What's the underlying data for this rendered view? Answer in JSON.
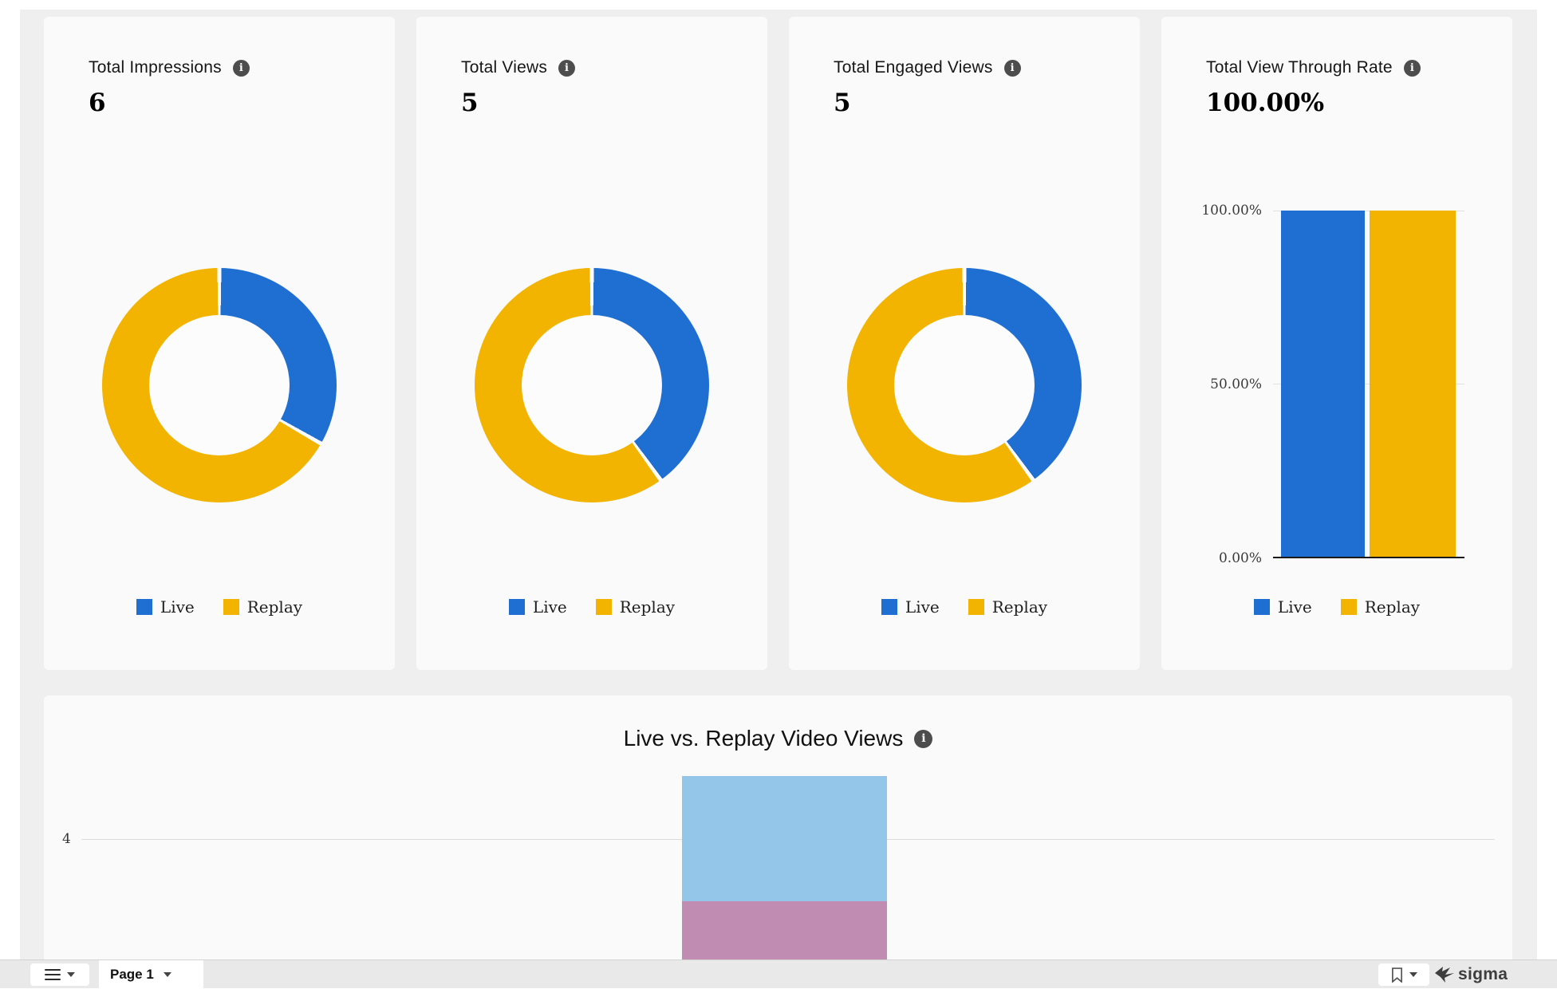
{
  "colors": {
    "live": "#1f6fd2",
    "replay": "#f2b400",
    "stack_top": "#93c6e8",
    "stack_bottom": "#c18cb2",
    "background": "#efeff0",
    "card": "#fafafa"
  },
  "legend": {
    "live": "Live",
    "replay": "Replay"
  },
  "kpi_cards": [
    {
      "title": "Total Impressions",
      "value": "6",
      "donut": {
        "live_pct": 33.3,
        "replay_pct": 66.7
      }
    },
    {
      "title": "Total Views",
      "value": "5",
      "donut": {
        "live_pct": 40,
        "replay_pct": 60
      }
    },
    {
      "title": "Total Engaged Views",
      "value": "5",
      "donut": {
        "live_pct": 40,
        "replay_pct": 60
      }
    },
    {
      "title": "Total View Through Rate",
      "value": "100.00%",
      "bar": {
        "values": [
          100,
          100
        ],
        "yticks": [
          "100.00%",
          "50.00%",
          "0.00%"
        ]
      }
    }
  ],
  "main_chart": {
    "title": "Live vs. Replay Video Views",
    "ytick": "4"
  },
  "toolbar": {
    "page_label": "Page 1",
    "brand": "sigma"
  },
  "chart_data": [
    {
      "type": "pie",
      "title": "Total Impressions",
      "labels": [
        "Live",
        "Replay"
      ],
      "values_pct": [
        33.3,
        66.7
      ],
      "kpi_total": 6,
      "legend_position": "bottom"
    },
    {
      "type": "pie",
      "title": "Total Views",
      "labels": [
        "Live",
        "Replay"
      ],
      "values_pct": [
        40,
        60
      ],
      "kpi_total": 5,
      "legend_position": "bottom"
    },
    {
      "type": "pie",
      "title": "Total Engaged Views",
      "labels": [
        "Live",
        "Replay"
      ],
      "values_pct": [
        40,
        60
      ],
      "kpi_total": 5,
      "legend_position": "bottom"
    },
    {
      "type": "bar",
      "title": "Total View Through Rate",
      "categories": [
        "Live",
        "Replay"
      ],
      "values": [
        100,
        100
      ],
      "ylim": [
        0,
        100
      ],
      "yticks": [
        "0.00%",
        "50.00%",
        "100.00%"
      ],
      "legend_position": "bottom"
    },
    {
      "type": "bar",
      "subtype": "stacked",
      "title": "Live vs. Replay Video Views",
      "visible_ytick": 4,
      "segments": [
        {
          "color": "#93c6e8",
          "value_est": 2
        },
        {
          "color": "#c18cb2",
          "value_est": 3
        }
      ]
    }
  ]
}
